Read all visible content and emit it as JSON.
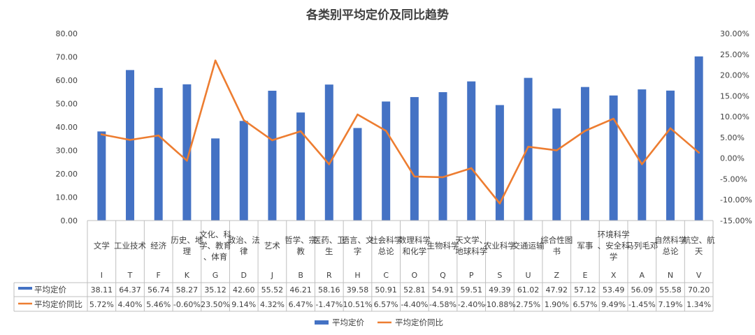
{
  "chart_data": {
    "type": "bar",
    "title": "各类别平均定价及同比趋势",
    "categories": [
      {
        "label": "文学",
        "code": "I"
      },
      {
        "label": "工业技术",
        "code": "T"
      },
      {
        "label": "经济",
        "code": "F"
      },
      {
        "label": "历史、地理",
        "code": "K"
      },
      {
        "label": "文化、科学、教育、体育",
        "code": "G"
      },
      {
        "label": "政治、法律",
        "code": "D"
      },
      {
        "label": "艺术",
        "code": "J"
      },
      {
        "label": "哲学、宗教",
        "code": "B"
      },
      {
        "label": "医药、卫生",
        "code": "R"
      },
      {
        "label": "语言、文字",
        "code": "H"
      },
      {
        "label": "社会科学总论",
        "code": "C"
      },
      {
        "label": "数理科学和化学",
        "code": "O"
      },
      {
        "label": "生物科学",
        "code": "Q"
      },
      {
        "label": "天文学、地球科学",
        "code": "P"
      },
      {
        "label": "农业科学",
        "code": "S"
      },
      {
        "label": "交通运输",
        "code": "U"
      },
      {
        "label": "综合性图书",
        "code": "Z"
      },
      {
        "label": "军事",
        "code": "E"
      },
      {
        "label": "环境科学、安全科学",
        "code": "X"
      },
      {
        "label": "马列毛邓",
        "code": "A"
      },
      {
        "label": "自然科学总论",
        "code": "N"
      },
      {
        "label": "航空、航天",
        "code": "V"
      }
    ],
    "series": [
      {
        "name": "平均定价",
        "type": "bar",
        "axis": "left",
        "color": "#4472C4",
        "values": [
          38.11,
          64.37,
          56.74,
          58.27,
          35.12,
          42.6,
          55.52,
          46.21,
          58.16,
          39.58,
          50.91,
          52.81,
          54.91,
          59.51,
          49.39,
          61.02,
          47.92,
          57.12,
          53.49,
          56.09,
          55.58,
          70.2
        ],
        "display": [
          "38.11",
          "64.37",
          "56.74",
          "58.27",
          "35.12",
          "42.60",
          "55.52",
          "46.21",
          "58.16",
          "39.58",
          "50.91",
          "52.81",
          "54.91",
          "59.51",
          "49.39",
          "61.02",
          "47.92",
          "57.12",
          "53.49",
          "56.09",
          "55.58",
          "70.20"
        ]
      },
      {
        "name": "平均定价同比",
        "type": "line",
        "axis": "right",
        "color": "#ED7D31",
        "values": [
          5.72,
          4.4,
          5.46,
          -0.6,
          23.5,
          9.14,
          4.32,
          6.47,
          -1.47,
          10.51,
          6.57,
          -4.4,
          -4.58,
          -2.4,
          -10.88,
          2.75,
          1.9,
          6.57,
          9.49,
          -1.45,
          7.19,
          1.34
        ],
        "display": [
          "5.72%",
          "4.40%",
          "5.46%",
          "-0.60%",
          "23.50%",
          "9.14%",
          "4.32%",
          "6.47%",
          "-1.47%",
          "10.51%",
          "6.57%",
          "-4.40%",
          "-4.58%",
          "-2.40%",
          "-10.88%",
          "2.75%",
          "1.90%",
          "6.57%",
          "9.49%",
          "-1.45%",
          "7.19%",
          "1.34%"
        ]
      }
    ],
    "y_left": {
      "min": 0,
      "max": 80,
      "step": 10,
      "tick_labels": [
        "0.00",
        "10.00",
        "20.00",
        "30.00",
        "40.00",
        "50.00",
        "60.00",
        "70.00",
        "80.00"
      ]
    },
    "y_right": {
      "min": -15,
      "max": 30,
      "step": 5,
      "tick_labels": [
        "-15.00%",
        "-10.00%",
        "-5.00%",
        "0.00%",
        "5.00%",
        "10.00%",
        "15.00%",
        "20.00%",
        "25.00%",
        "30.00%"
      ]
    },
    "data_table": true,
    "legend_position": "bottom",
    "grid": false
  }
}
